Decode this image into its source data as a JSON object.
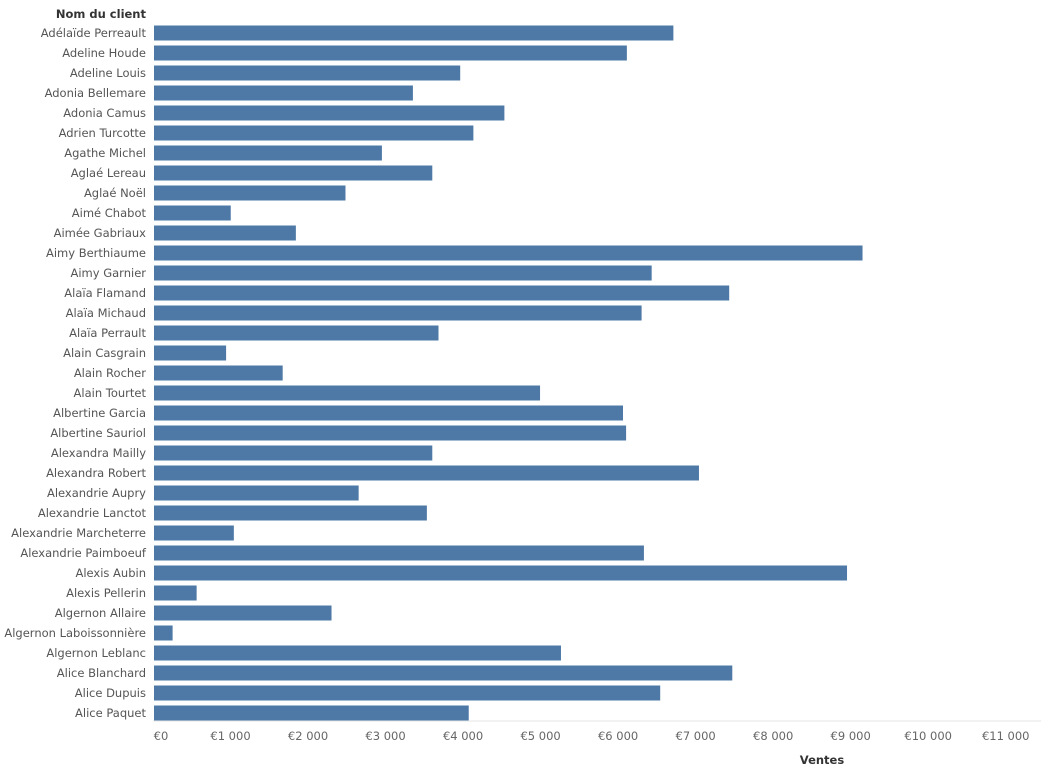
{
  "chart_data": {
    "type": "bar",
    "orientation": "horizontal",
    "category_header": "Nom du client",
    "xlabel": "Ventes",
    "xlim": [
      0,
      11000
    ],
    "xticks": [
      0,
      1000,
      2000,
      3000,
      4000,
      5000,
      6000,
      7000,
      8000,
      9000,
      10000,
      11000
    ],
    "xtick_labels": [
      "€0",
      "€1 000",
      "€2 000",
      "€3 000",
      "€4 000",
      "€5 000",
      "€6 000",
      "€7 000",
      "€8 000",
      "€9 000",
      "€10 000",
      "€11 000"
    ],
    "grid": false,
    "bar_color": "#4e79a7",
    "categories": [
      "Adélaïde Perreault",
      "Adeline Houde",
      "Adeline Louis",
      "Adonia Bellemare",
      "Adonia Camus",
      "Adrien Turcotte",
      "Agathe Michel",
      "Aglaé Lereau",
      "Aglaé Noël",
      "Aimé Chabot",
      "Aimée Gabriaux",
      "Aimy Berthiaume",
      "Aimy Garnier",
      "Alaïa Flamand",
      "Alaïa Michaud",
      "Alaïa Perrault",
      "Alain Casgrain",
      "Alain Rocher",
      "Alain Tourtet",
      "Albertine Garcia",
      "Albertine Sauriol",
      "Alexandra Mailly",
      "Alexandra Robert",
      "Alexandrie Aupry",
      "Alexandrie Lanctot",
      "Alexandrie Marcheterre",
      "Alexandrie Paimboeuf",
      "Alexis Aubin",
      "Alexis Pellerin",
      "Algernon Allaire",
      "Algernon Laboissonnière",
      "Algernon Leblanc",
      "Alice Blanchard",
      "Alice Dupuis",
      "Alice Paquet"
    ],
    "values": [
      6700,
      6100,
      3950,
      3340,
      4520,
      4120,
      2940,
      3590,
      2470,
      990,
      1830,
      9140,
      6420,
      7420,
      6290,
      3670,
      930,
      1660,
      4980,
      6050,
      6090,
      3590,
      7030,
      2640,
      3520,
      1030,
      6320,
      8940,
      550,
      2290,
      240,
      5250,
      7460,
      6530,
      4060
    ]
  }
}
